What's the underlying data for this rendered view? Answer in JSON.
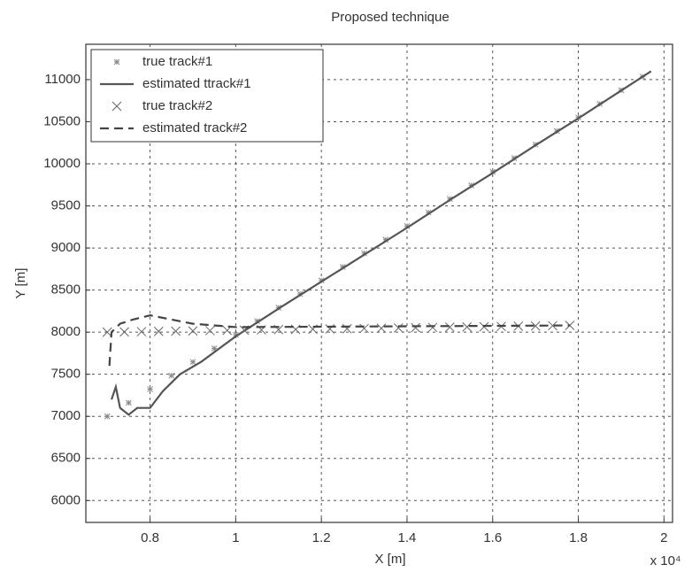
{
  "chart_data": {
    "type": "line",
    "title": "Proposed technique",
    "x_label": "X [m]",
    "y_label": "Y [m]",
    "x_scale_label": "x 10⁴",
    "xlim": [
      0.65,
      2.02
    ],
    "ylim": [
      5740,
      11420
    ],
    "xticks": [
      0.8,
      1,
      1.2,
      1.4,
      1.6,
      1.8,
      2
    ],
    "yticks": [
      6000,
      6500,
      7000,
      7500,
      8000,
      8500,
      9000,
      9500,
      10000,
      10500,
      11000
    ],
    "grid": true,
    "legend": "top-left",
    "series": [
      {
        "name": "true track#1",
        "color": "#888888",
        "marker": "star",
        "line": "none",
        "x": [
          0.7,
          0.75,
          0.8,
          0.85,
          0.9,
          0.95,
          1.0,
          1.05,
          1.1,
          1.15,
          1.2,
          1.25,
          1.3,
          1.35,
          1.4,
          1.45,
          1.5,
          1.55,
          1.6,
          1.65,
          1.7,
          1.75,
          1.8,
          1.85,
          1.9,
          1.95
        ],
        "values": [
          7000,
          7161,
          7323,
          7484,
          7646,
          7807,
          7968,
          8130,
          8291,
          8453,
          8614,
          8775,
          8937,
          9098,
          9260,
          9421,
          9582,
          9744,
          9905,
          10067,
          10228,
          10389,
          10551,
          10712,
          10874,
          11035
        ]
      },
      {
        "name": "estimated ttrack#1",
        "color": "#555555",
        "marker": "none",
        "line": "solid",
        "x": [
          0.71,
          0.72,
          0.73,
          0.75,
          0.77,
          0.8,
          0.83,
          0.87,
          0.92,
          1.0,
          1.1,
          1.2,
          1.3,
          1.4,
          1.5,
          1.6,
          1.7,
          1.8,
          1.9,
          1.97
        ],
        "values": [
          7200,
          7350,
          7100,
          7020,
          7100,
          7100,
          7300,
          7500,
          7650,
          7950,
          8280,
          8600,
          8920,
          9240,
          9570,
          9890,
          10220,
          10540,
          10870,
          11100
        ]
      },
      {
        "name": "true track#2",
        "color": "#666666",
        "marker": "x",
        "line": "none",
        "x": [
          0.7,
          0.74,
          0.78,
          0.82,
          0.86,
          0.9,
          0.94,
          0.98,
          1.02,
          1.06,
          1.1,
          1.14,
          1.18,
          1.22,
          1.26,
          1.3,
          1.34,
          1.38,
          1.42,
          1.46,
          1.5,
          1.54,
          1.58,
          1.62,
          1.66,
          1.7,
          1.74,
          1.78
        ],
        "values": [
          8000,
          8003,
          8006,
          8009,
          8012,
          8015,
          8018,
          8021,
          8024,
          8027,
          8030,
          8033,
          8036,
          8038,
          8041,
          8044,
          8047,
          8050,
          8053,
          8056,
          8059,
          8062,
          8065,
          8068,
          8071,
          8074,
          8077,
          8080
        ]
      },
      {
        "name": "estimated track#2",
        "color": "#444444",
        "marker": "none",
        "line": "dashed",
        "x": [
          0.705,
          0.71,
          0.73,
          0.76,
          0.8,
          0.85,
          0.9,
          1.0,
          1.2,
          1.4,
          1.6,
          1.78
        ],
        "values": [
          7600,
          8000,
          8100,
          8150,
          8200,
          8150,
          8100,
          8060,
          8065,
          8070,
          8075,
          8080
        ]
      }
    ]
  }
}
